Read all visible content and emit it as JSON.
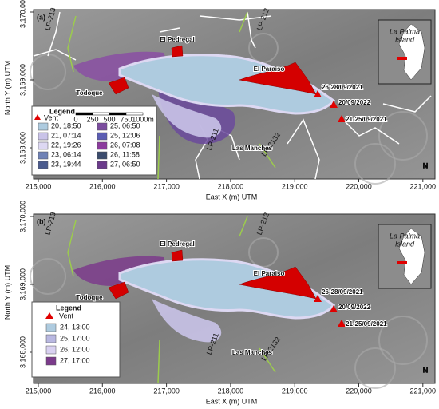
{
  "panels": [
    {
      "label": "(a)",
      "x_label": "East X (m) UTM",
      "y_label": "North Y (m) UTM",
      "x_ticks": [
        "215,000",
        "216,000",
        "217,000",
        "218,000",
        "219,000",
        "220,000",
        "221,000"
      ],
      "y_ticks": [
        "3,170,000",
        "3,169,000",
        "3,168,000"
      ],
      "places": [
        "El Pedregal",
        "El Paraiso",
        "Todoque",
        "Las Manchas"
      ],
      "vents": [
        "26-28/09/2021",
        "20/09/2022",
        "21-25/09/2021"
      ],
      "roads": [
        "LP-213",
        "LP-212",
        "LP-2132",
        "LP-211"
      ],
      "inset": [
        "La Palma",
        "Island"
      ],
      "north": "N",
      "legend": {
        "title": "Legend",
        "vent": "Vent",
        "scale": [
          "0",
          "250",
          "500",
          "750",
          "1000m"
        ],
        "entries": [
          {
            "label": "20, 18:50",
            "color": "#aecbdf"
          },
          {
            "label": "21, 07:14",
            "color": "#c9c3e8"
          },
          {
            "label": "22, 19:26",
            "color": "#ddd8f2"
          },
          {
            "label": "23, 06:14",
            "color": "#6f82b6"
          },
          {
            "label": "23, 19:44",
            "color": "#4b5b8e"
          },
          {
            "label": "25, 06:50",
            "color": "#7b4c9e"
          },
          {
            "label": "25, 12:06",
            "color": "#5b5db3"
          },
          {
            "label": "26, 07:08",
            "color": "#8b3b9d"
          },
          {
            "label": "26, 11:58",
            "color": "#3b4b6d"
          },
          {
            "label": "27, 06:50",
            "color": "#6b3b8b"
          }
        ]
      }
    },
    {
      "label": "(b)",
      "x_label": "East X (m) UTM",
      "y_label": "North Y (m) UTM",
      "x_ticks": [
        "215,000",
        "216,000",
        "217,000",
        "218,000",
        "219,000",
        "220,000",
        "221,000"
      ],
      "y_ticks": [
        "3,170,000",
        "3,169,000",
        "3,168,000"
      ],
      "places": [
        "El Pedregal",
        "El Paraiso",
        "Todoque",
        "Las Manchas"
      ],
      "vents": [
        "26-28/09/2021",
        "20/09/2022",
        "21-25/09/2021"
      ],
      "roads": [
        "LP-213",
        "LP-212",
        "LP-2132",
        "LP-211"
      ],
      "inset": [
        "La Palma",
        "Island"
      ],
      "north": "N",
      "legend": {
        "title": "Legend",
        "vent": "Vent",
        "entries": [
          {
            "label": "24, 13:00",
            "color": "#aecbdf"
          },
          {
            "label": "25, 17:00",
            "color": "#b9b8e1"
          },
          {
            "label": "26, 12:00",
            "color": "#d9d1f1"
          },
          {
            "label": "27, 17:00",
            "color": "#7b3b8b"
          }
        ]
      }
    }
  ]
}
